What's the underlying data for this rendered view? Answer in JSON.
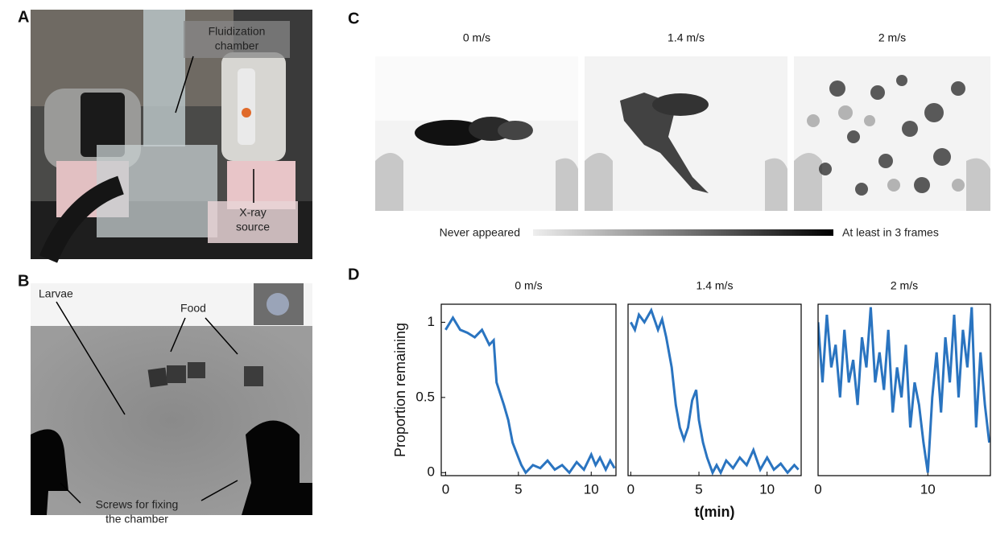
{
  "panel_labels": [
    "A",
    "B",
    "C",
    "D"
  ],
  "panel_a": {
    "annotations": [
      [
        "Fluidization",
        "chamber"
      ],
      [
        "X-ray",
        "source"
      ]
    ]
  },
  "panel_b": {
    "annotations": [
      [
        "Larvae"
      ],
      [
        "Food"
      ],
      [
        "Screws for fixing",
        "the chamber"
      ]
    ]
  },
  "panel_c": {
    "titles": [
      "0 m/s",
      "1.4 m/s",
      "2 m/s"
    ],
    "colorbar": {
      "low": "Never appeared",
      "high": "At least in 3 frames"
    }
  },
  "chart_data": [
    {
      "type": "line",
      "title": "0 m/s",
      "ylabel": "Proportion remaining",
      "color": "#2a74c0",
      "x": [
        0,
        0.5,
        1,
        1.5,
        2,
        2.5,
        3,
        3.3,
        3.5,
        4,
        4.3,
        4.6,
        5,
        5.2,
        5.5,
        6,
        6.5,
        7,
        7.5,
        8,
        8.5,
        9,
        9.5,
        10,
        10.3,
        10.6,
        11,
        11.3,
        11.6
      ],
      "values": [
        0.95,
        1.03,
        0.95,
        0.93,
        0.9,
        0.95,
        0.85,
        0.88,
        0.6,
        0.45,
        0.35,
        0.2,
        0.1,
        0.05,
        0,
        0.05,
        0.03,
        0.08,
        0.02,
        0.05,
        0,
        0.07,
        0.02,
        0.12,
        0.05,
        0.1,
        0.02,
        0.08,
        0.03
      ],
      "xlim": [
        -0.3,
        11.7
      ],
      "ylim": [
        -0.02,
        1.12
      ],
      "xticks": [
        0,
        5,
        10
      ],
      "yticks": [
        0,
        0.5,
        1
      ]
    },
    {
      "type": "line",
      "title": "1.4 m/s",
      "xlabel": "t(min)",
      "color": "#2a74c0",
      "x": [
        0,
        0.3,
        0.6,
        1,
        1.5,
        2,
        2.3,
        2.6,
        3,
        3.3,
        3.6,
        3.9,
        4.2,
        4.5,
        4.8,
        5,
        5.3,
        5.6,
        6,
        6.3,
        6.6,
        7,
        7.5,
        8,
        8.5,
        9,
        9.5,
        10,
        10.5,
        11,
        11.5,
        12,
        12.3
      ],
      "values": [
        1,
        0.95,
        1.05,
        1,
        1.08,
        0.95,
        1.02,
        0.9,
        0.7,
        0.45,
        0.3,
        0.22,
        0.3,
        0.48,
        0.55,
        0.35,
        0.2,
        0.1,
        0,
        0.05,
        0,
        0.08,
        0.03,
        0.1,
        0.05,
        0.15,
        0.02,
        0.1,
        0.02,
        0.06,
        0,
        0.05,
        0.02
      ],
      "xlim": [
        -0.2,
        12.5
      ],
      "ylim": [
        -0.02,
        1.12
      ],
      "xticks": [
        0,
        5,
        10
      ]
    },
    {
      "type": "line",
      "title": "2 m/s",
      "color": "#2a74c0",
      "x": [
        0,
        0.4,
        0.8,
        1.2,
        1.6,
        2,
        2.4,
        2.8,
        3.2,
        3.6,
        4,
        4.4,
        4.8,
        5.2,
        5.6,
        6,
        6.4,
        6.8,
        7.2,
        7.6,
        8,
        8.4,
        8.8,
        9.2,
        9.6,
        10,
        10.4,
        10.8,
        11.2,
        11.6,
        12,
        12.4,
        12.8,
        13.2,
        13.6,
        14,
        14.4,
        14.8,
        15.2,
        15.6
      ],
      "values": [
        1,
        0.6,
        1.05,
        0.7,
        0.85,
        0.5,
        0.95,
        0.6,
        0.75,
        0.45,
        0.9,
        0.7,
        1.1,
        0.6,
        0.8,
        0.55,
        0.95,
        0.4,
        0.7,
        0.5,
        0.85,
        0.3,
        0.6,
        0.45,
        0.2,
        0,
        0.5,
        0.8,
        0.4,
        0.9,
        0.6,
        1.05,
        0.5,
        0.95,
        0.7,
        1.1,
        0.3,
        0.8,
        0.45,
        0.2
      ],
      "xlim": [
        0,
        15.7
      ],
      "ylim": [
        -0.02,
        1.12
      ],
      "xticks": [
        0,
        10
      ]
    }
  ]
}
